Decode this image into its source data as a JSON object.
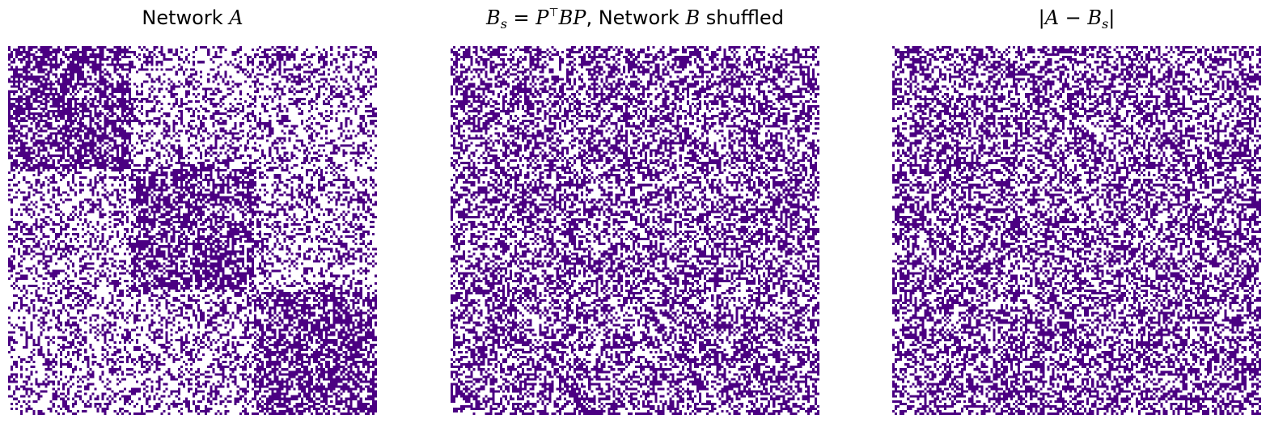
{
  "colors": {
    "edge": "#4b0082",
    "empty": "#ffffff"
  },
  "chart_data": [
    {
      "type": "heatmap",
      "title_parts": [
        "Network ",
        "A",
        ""
      ],
      "grid_size": 150,
      "blocks": [
        50,
        50,
        50
      ],
      "density": {
        "within_block": 0.65,
        "between_block": 0.35
      },
      "pattern": "block_sbm",
      "axes_visible": false
    },
    {
      "type": "heatmap",
      "title_parts": [
        "B",
        "s",
        " = ",
        "P",
        "⊤",
        "BP",
        ", Network ",
        "B",
        " shuffled"
      ],
      "grid_size": 150,
      "density": {
        "uniform": 0.5
      },
      "pattern": "shuffled",
      "axes_visible": false
    },
    {
      "type": "heatmap",
      "title_parts": [
        "|",
        "A",
        " − ",
        "B",
        "s",
        "|"
      ],
      "grid_size": 150,
      "density": {
        "uniform": 0.5
      },
      "pattern": "difference",
      "axes_visible": false
    }
  ]
}
